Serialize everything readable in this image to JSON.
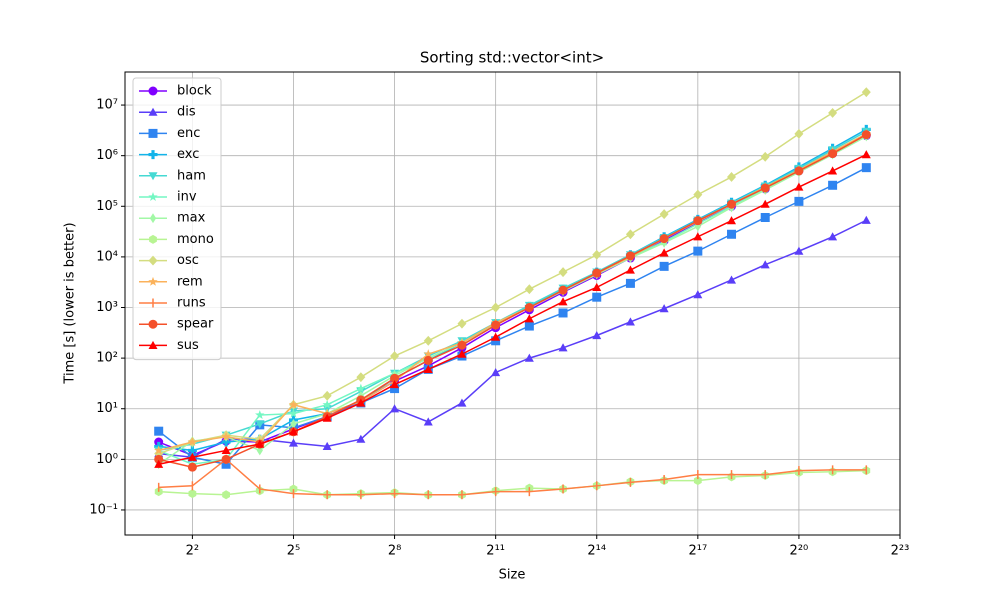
{
  "chart_data": {
    "type": "line",
    "title": "Sorting std::vector<int>",
    "x_label": "Size",
    "y_label": "Time [s] (lower is better)",
    "xscale": "log",
    "xbase": 2,
    "yscale": "log",
    "ybase": 10,
    "grid": true,
    "legend_position": "upper left",
    "xlim": [
      1,
      8388608
    ],
    "ylim": [
      0.032,
      45000000
    ],
    "xticks": [
      {
        "value": 4,
        "label": "2²"
      },
      {
        "value": 32,
        "label": "2⁵"
      },
      {
        "value": 256,
        "label": "2⁸"
      },
      {
        "value": 2048,
        "label": "2¹¹"
      },
      {
        "value": 16384,
        "label": "2¹⁴"
      },
      {
        "value": 131072,
        "label": "2¹⁷"
      },
      {
        "value": 1048576,
        "label": "2²⁰"
      },
      {
        "value": 8388608,
        "label": "2²³"
      }
    ],
    "yticks": [
      {
        "value": 0.1,
        "label": "10⁻¹"
      },
      {
        "value": 1,
        "label": "10⁰"
      },
      {
        "value": 10,
        "label": "10¹"
      },
      {
        "value": 100,
        "label": "10²"
      },
      {
        "value": 1000,
        "label": "10³"
      },
      {
        "value": 10000,
        "label": "10⁴"
      },
      {
        "value": 100000,
        "label": "10⁵"
      },
      {
        "value": 1000000,
        "label": "10⁶"
      },
      {
        "value": 10000000,
        "label": "10⁷"
      }
    ],
    "x": [
      2,
      4,
      8,
      16,
      32,
      64,
      128,
      256,
      512,
      1024,
      2048,
      4096,
      8192,
      16384,
      32768,
      65536,
      131072,
      262144,
      524288,
      1048576,
      2097152,
      4194304
    ],
    "series": [
      {
        "name": "block",
        "color": "#8000ff",
        "marker": "o",
        "values": [
          2.2,
          1.2,
          2.3,
          2.2,
          4,
          7,
          14,
          35,
          70,
          160,
          400,
          900,
          2000,
          4300,
          9500,
          21000,
          48000,
          100000,
          220000,
          500000,
          1100000,
          2500000
        ]
      },
      {
        "name": "dis",
        "color": "#5a3ef8",
        "marker": "^",
        "values": [
          1.3,
          1.1,
          2.5,
          2.5,
          2.1,
          1.8,
          2.5,
          10,
          5.5,
          13,
          52,
          100,
          160,
          280,
          520,
          950,
          1800,
          3500,
          7000,
          13000,
          25000,
          53000
        ]
      },
      {
        "name": "enc",
        "color": "#2f84f0",
        "marker": "s",
        "values": [
          3.6,
          1.1,
          0.8,
          4.8,
          4.2,
          7,
          13,
          25,
          60,
          110,
          220,
          430,
          780,
          1600,
          3000,
          6500,
          13000,
          28000,
          60000,
          125000,
          260000,
          580000
        ]
      },
      {
        "name": "exc",
        "color": "#13b4ea",
        "marker": "P",
        "values": [
          1.8,
          1.5,
          2.2,
          2.5,
          6,
          8,
          14,
          40,
          90,
          200,
          480,
          1050,
          2300,
          5000,
          11000,
          25000,
          55000,
          120000,
          260000,
          600000,
          1400000,
          3300000
        ]
      },
      {
        "name": "ham",
        "color": "#45d9d3",
        "marker": "v",
        "values": [
          1.5,
          2,
          3,
          5,
          9,
          10,
          22,
          50,
          110,
          220,
          500,
          1100,
          2400,
          5000,
          11000,
          24000,
          53000,
          115000,
          250000,
          560000,
          1300000,
          3000000
        ]
      },
      {
        "name": "inv",
        "color": "#74f7c3",
        "marker": "*",
        "values": [
          1.5,
          0.8,
          1,
          7.5,
          8,
          12,
          25,
          50,
          100,
          200,
          480,
          1000,
          2200,
          4600,
          10000,
          20000,
          45000,
          100000,
          220000,
          500000,
          1100000,
          2500000
        ]
      },
      {
        "name": "max",
        "color": "#a2f8a6",
        "marker": "d",
        "values": [
          0.8,
          2.3,
          2.8,
          1.5,
          5,
          8,
          18,
          45,
          100,
          200,
          450,
          1000,
          2100,
          4500,
          9500,
          19000,
          40000,
          95000,
          210000,
          470000,
          1050000,
          2400000
        ]
      },
      {
        "name": "mono",
        "color": "#b8f493",
        "marker": "h",
        "values": [
          0.23,
          0.21,
          0.2,
          0.24,
          0.26,
          0.2,
          0.21,
          0.22,
          0.2,
          0.2,
          0.24,
          0.27,
          0.26,
          0.3,
          0.36,
          0.38,
          0.38,
          0.45,
          0.48,
          0.55,
          0.57,
          0.6
        ]
      },
      {
        "name": "osc",
        "color": "#d4dd80",
        "marker": "D",
        "values": [
          1.3,
          2.2,
          3,
          2.5,
          12,
          18,
          42,
          110,
          220,
          480,
          1000,
          2300,
          5000,
          11000,
          28000,
          70000,
          170000,
          380000,
          950000,
          2700000,
          7000000,
          18000000
        ]
      },
      {
        "name": "rem",
        "color": "#fbb25b",
        "marker": "*",
        "values": [
          1.5,
          2.2,
          2.8,
          2.2,
          12,
          8,
          14,
          35,
          120,
          200,
          500,
          1000,
          2200,
          4700,
          10000,
          23000,
          50000,
          110000,
          240000,
          520000,
          1200000,
          2700000
        ]
      },
      {
        "name": "runs",
        "color": "#ff7e44",
        "marker": "|",
        "values": [
          0.28,
          0.3,
          1.0,
          0.26,
          0.21,
          0.2,
          0.2,
          0.21,
          0.2,
          0.2,
          0.23,
          0.23,
          0.26,
          0.3,
          0.35,
          0.4,
          0.5,
          0.5,
          0.5,
          0.6,
          0.62,
          0.62
        ]
      },
      {
        "name": "spear",
        "color": "#f4502a",
        "marker": "o",
        "values": [
          1.0,
          0.7,
          1.0,
          2,
          3.5,
          7,
          15,
          40,
          90,
          180,
          450,
          1000,
          2200,
          4800,
          10500,
          23000,
          52000,
          110000,
          230000,
          500000,
          1100000,
          2600000
        ]
      },
      {
        "name": "sus",
        "color": "#ff0000",
        "marker": "^",
        "values": [
          0.8,
          1.1,
          1.5,
          2,
          3.5,
          6.5,
          13,
          30,
          60,
          120,
          260,
          600,
          1300,
          2500,
          5500,
          12000,
          25000,
          52000,
          110000,
          240000,
          500000,
          1050000
        ]
      }
    ]
  }
}
